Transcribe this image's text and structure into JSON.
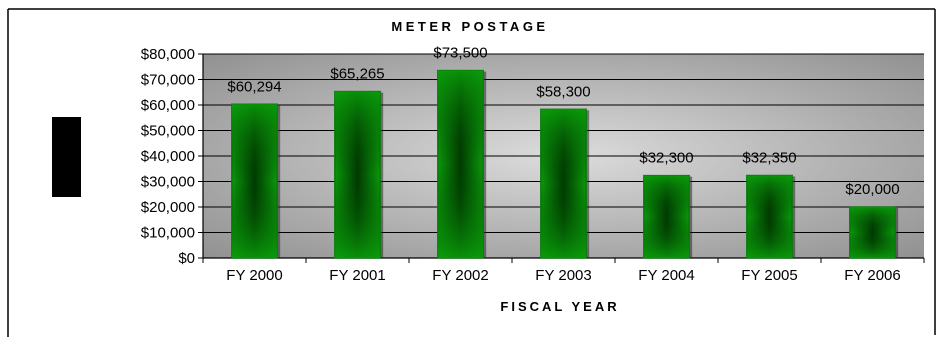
{
  "chart_data": {
    "type": "bar",
    "title": "METER POSTAGE",
    "xlabel": "FISCAL YEAR",
    "ylabel": "",
    "categories": [
      "FY 2000",
      "FY 2001",
      "FY 2002",
      "FY 2003",
      "FY 2004",
      "FY 2005",
      "FY 2006"
    ],
    "values": [
      60294,
      65265,
      73500,
      58300,
      32300,
      32350,
      20000
    ],
    "data_labels": [
      "$60,294",
      "$65,265",
      "$73,500",
      "$58,300",
      "$32,300",
      "$32,350",
      "$20,000"
    ],
    "y_ticks": [
      0,
      10000,
      20000,
      30000,
      40000,
      50000,
      60000,
      70000,
      80000
    ],
    "y_tick_labels": [
      "$0",
      "$10,000",
      "$20,000",
      "$30,000",
      "$40,000",
      "$50,000",
      "$60,000",
      "$70,000",
      "$80,000"
    ],
    "ylim": [
      0,
      80000
    ],
    "grid": true,
    "legend": "none",
    "colors": {
      "bar_dark": "#013a01",
      "bar_light": "#0a9a0a",
      "bar_edge": "#006400",
      "plot_bg_center": "#dcdcdc",
      "plot_bg_edge": "#8c8c8c",
      "gridline": "#000000"
    }
  }
}
